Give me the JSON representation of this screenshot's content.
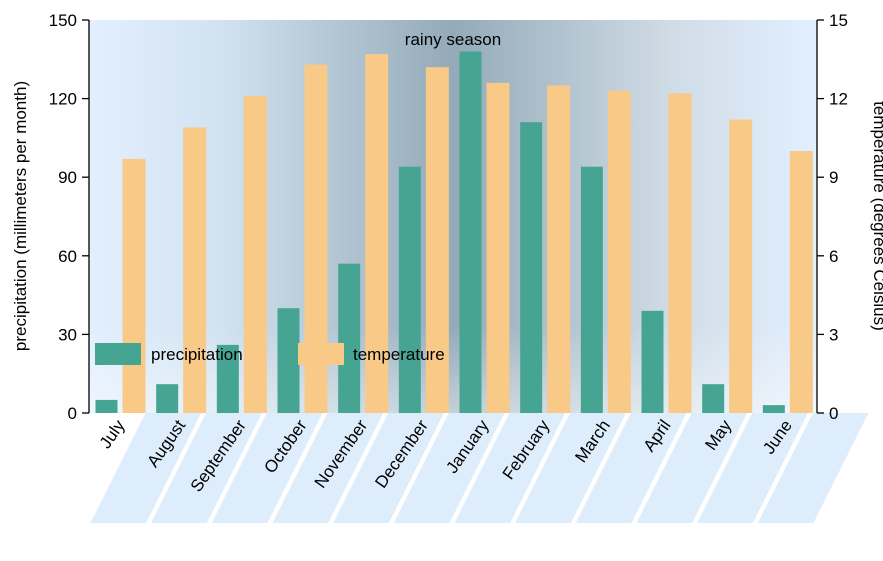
{
  "chart_data": {
    "type": "bar",
    "title": "",
    "annotation": "rainy season",
    "categories": [
      "July",
      "August",
      "September",
      "October",
      "November",
      "December",
      "January",
      "February",
      "March",
      "April",
      "May",
      "June"
    ],
    "series": [
      {
        "name": "precipitation",
        "axis": "left",
        "color": "#45a592",
        "values": [
          5,
          11,
          26,
          40,
          57,
          94,
          138,
          111,
          94,
          39,
          11,
          3
        ]
      },
      {
        "name": "temperature",
        "axis": "right",
        "color": "#f8c987",
        "values": [
          9.7,
          10.9,
          12.1,
          13.3,
          13.7,
          13.2,
          12.6,
          12.5,
          12.3,
          12.2,
          11.2,
          10.0
        ]
      }
    ],
    "ylabel": "precipitation (millimeters per month)",
    "ylabel_right": "temperature (degrees Celsius)",
    "ylim": [
      0,
      150
    ],
    "ylim_right": [
      0,
      15
    ],
    "yticks": [
      0,
      30,
      60,
      90,
      120,
      150
    ],
    "yticks_right": [
      0,
      3,
      6,
      9,
      12,
      15
    ],
    "grid": false,
    "legend_position": "bottom-left"
  }
}
